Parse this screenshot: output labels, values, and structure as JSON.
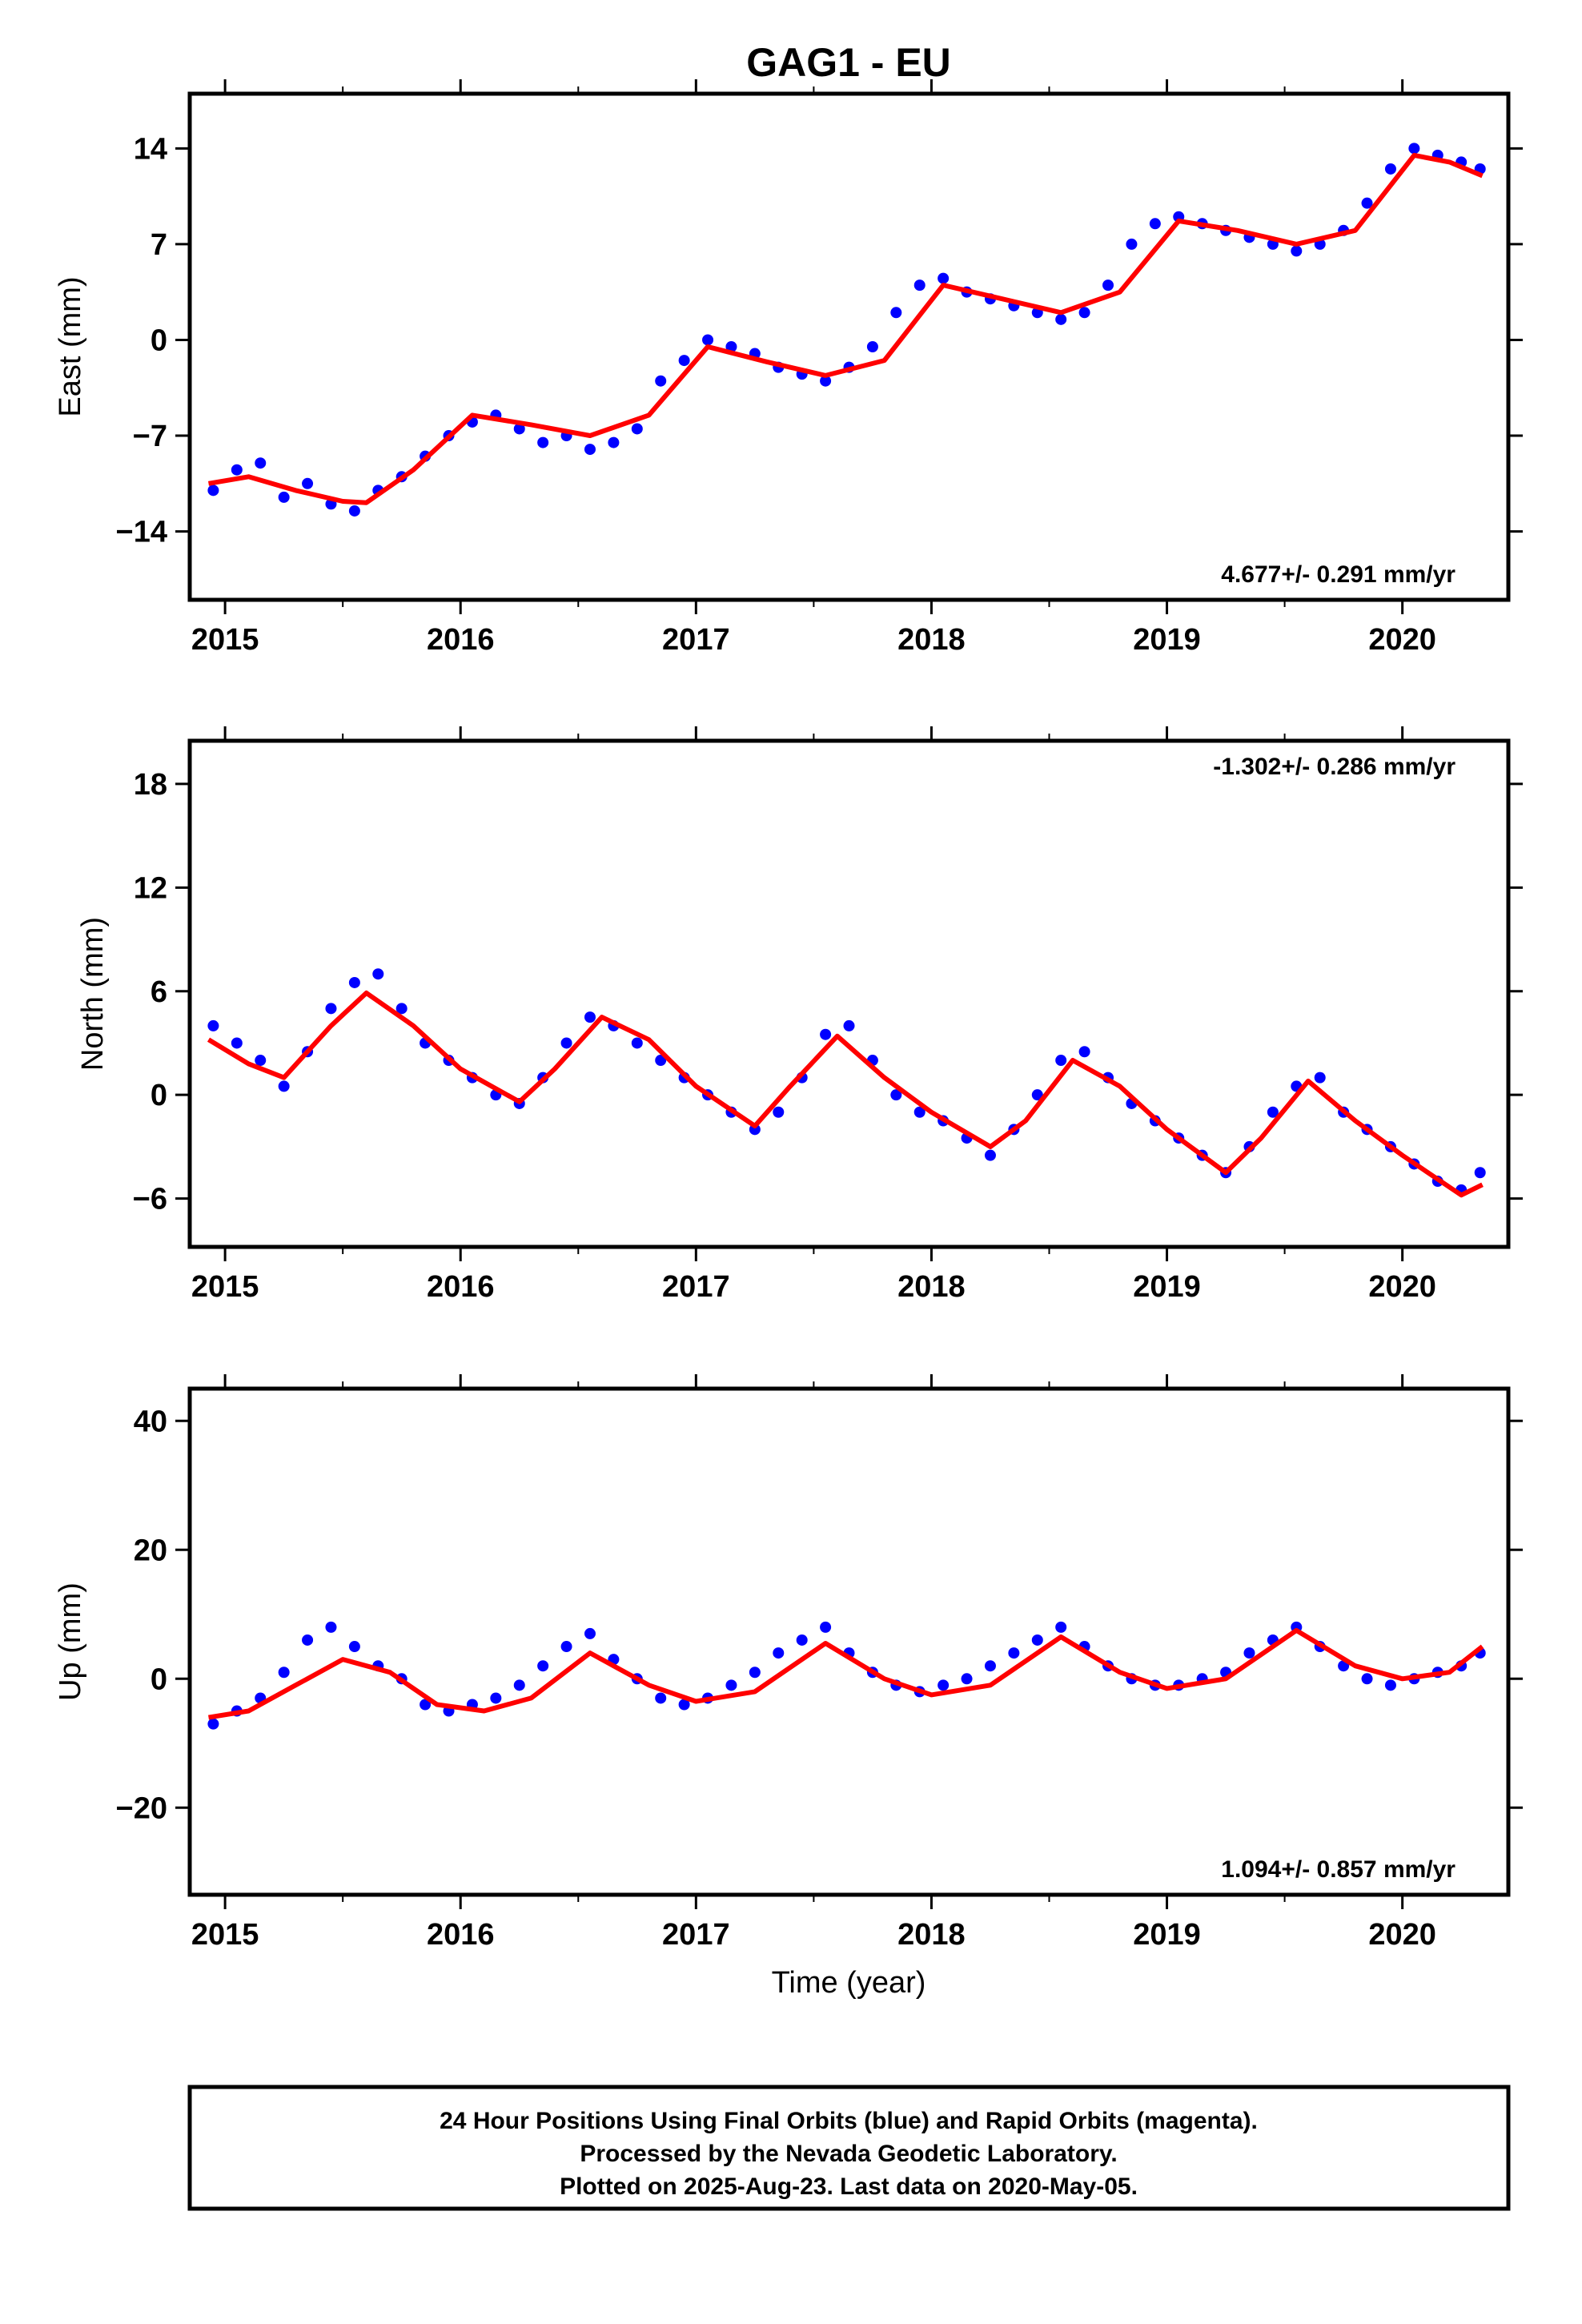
{
  "title": "GAG1 - EU",
  "xlabel": "Time (year)",
  "footer": [
    "24 Hour Positions Using Final Orbits (blue) and Rapid Orbits (magenta).",
    "Processed by the Nevada Geodetic Laboratory.",
    "Plotted on 2025-Aug-23. Last data on 2020-May-05."
  ],
  "colors": {
    "points": "#0000ff",
    "fit": "#ff0000",
    "frame": "#000000"
  },
  "chart_data": [
    {
      "type": "scatter",
      "ylabel": "East (mm)",
      "rate_text": "4.677+/- 0.291 mm/yr",
      "rate_position": "bottom-right",
      "xlim": [
        2014.85,
        2020.45
      ],
      "ylim": [
        -19,
        18
      ],
      "x_ticks": [
        2015,
        2016,
        2017,
        2018,
        2019,
        2020
      ],
      "x_tick_labels": [
        "2015",
        "2016",
        "2017",
        "2018",
        "2019",
        "2020"
      ],
      "y_ticks": [
        -14,
        -7,
        0,
        7,
        14
      ],
      "y_tick_labels": [
        "−14",
        "−7",
        "0",
        "7",
        "14"
      ],
      "fit_line": {
        "x": [
          2014.93,
          2015.1,
          2015.3,
          2015.5,
          2015.6,
          2015.8,
          2016.05,
          2016.3,
          2016.55,
          2016.8,
          2017.05,
          2017.3,
          2017.55,
          2017.8,
          2018.05,
          2018.3,
          2018.55,
          2018.8,
          2019.05,
          2019.3,
          2019.55,
          2019.8,
          2020.05,
          2020.2,
          2020.34
        ],
        "y": [
          -10.5,
          -10,
          -11,
          -11.8,
          -11.9,
          -9.5,
          -5.5,
          -6.2,
          -7.0,
          -5.5,
          -0.5,
          -1.6,
          -2.6,
          -1.5,
          4,
          3,
          2,
          3.5,
          8.7,
          8,
          7,
          8,
          13.5,
          13,
          12
        ]
      },
      "points": {
        "x": [
          2014.95,
          2015.05,
          2015.15,
          2015.25,
          2015.35,
          2015.45,
          2015.55,
          2015.65,
          2015.75,
          2015.85,
          2015.95,
          2016.05,
          2016.15,
          2016.25,
          2016.35,
          2016.45,
          2016.55,
          2016.65,
          2016.75,
          2016.85,
          2016.95,
          2017.05,
          2017.15,
          2017.25,
          2017.35,
          2017.45,
          2017.55,
          2017.65,
          2017.75,
          2017.85,
          2017.95,
          2018.05,
          2018.15,
          2018.25,
          2018.35,
          2018.45,
          2018.55,
          2018.65,
          2018.75,
          2018.85,
          2018.95,
          2019.05,
          2019.15,
          2019.25,
          2019.35,
          2019.45,
          2019.55,
          2019.65,
          2019.75,
          2019.85,
          2019.95,
          2020.05,
          2020.15,
          2020.25,
          2020.33
        ],
        "y": [
          -11,
          -9.5,
          -9,
          -11.5,
          -10.5,
          -12,
          -12.5,
          -11,
          -10,
          -8.5,
          -7,
          -6,
          -5.5,
          -6.5,
          -7.5,
          -7,
          -8,
          -7.5,
          -6.5,
          -3,
          -1.5,
          0,
          -0.5,
          -1,
          -2,
          -2.5,
          -3,
          -2,
          -0.5,
          2,
          4,
          4.5,
          3.5,
          3,
          2.5,
          2,
          1.5,
          2,
          4,
          7,
          8.5,
          9,
          8.5,
          8,
          7.5,
          7,
          6.5,
          7,
          8,
          10,
          12.5,
          14,
          13.5,
          13,
          12.5
        ]
      }
    },
    {
      "type": "scatter",
      "ylabel": "North (mm)",
      "rate_text": "-1.302+/- 0.286 mm/yr",
      "rate_position": "top-right",
      "xlim": [
        2014.85,
        2020.45
      ],
      "ylim": [
        -8.8,
        20.5
      ],
      "x_ticks": [
        2015,
        2016,
        2017,
        2018,
        2019,
        2020
      ],
      "x_tick_labels": [
        "2015",
        "2016",
        "2017",
        "2018",
        "2019",
        "2020"
      ],
      "y_ticks": [
        -6,
        0,
        6,
        12,
        18
      ],
      "y_tick_labels": [
        "−6",
        "0",
        "6",
        "12",
        "18"
      ],
      "fit_line": {
        "x": [
          2014.93,
          2015.1,
          2015.25,
          2015.45,
          2015.6,
          2015.8,
          2016.0,
          2016.25,
          2016.4,
          2016.6,
          2016.8,
          2017.0,
          2017.25,
          2017.4,
          2017.6,
          2017.8,
          2018.0,
          2018.25,
          2018.4,
          2018.6,
          2018.8,
          2019.0,
          2019.25,
          2019.4,
          2019.6,
          2019.8,
          2020.0,
          2020.25,
          2020.34
        ],
        "y": [
          3.2,
          1.8,
          1.0,
          4.0,
          5.9,
          4.0,
          1.5,
          -0.4,
          1.5,
          4.5,
          3.2,
          0.5,
          -1.8,
          0.5,
          3.4,
          1.0,
          -1.0,
          -3.0,
          -1.5,
          2.0,
          0.5,
          -2.0,
          -4.5,
          -2.5,
          0.8,
          -1.5,
          -3.5,
          -5.8,
          -5.2
        ]
      },
      "points": {
        "x": [
          2014.95,
          2015.05,
          2015.15,
          2015.25,
          2015.35,
          2015.45,
          2015.55,
          2015.65,
          2015.75,
          2015.85,
          2015.95,
          2016.05,
          2016.15,
          2016.25,
          2016.35,
          2016.45,
          2016.55,
          2016.65,
          2016.75,
          2016.85,
          2016.95,
          2017.05,
          2017.15,
          2017.25,
          2017.35,
          2017.45,
          2017.55,
          2017.65,
          2017.75,
          2017.85,
          2017.95,
          2018.05,
          2018.15,
          2018.25,
          2018.35,
          2018.45,
          2018.55,
          2018.65,
          2018.75,
          2018.85,
          2018.95,
          2019.05,
          2019.15,
          2019.25,
          2019.35,
          2019.45,
          2019.55,
          2019.65,
          2019.75,
          2019.85,
          2019.95,
          2020.05,
          2020.15,
          2020.25,
          2020.33
        ],
        "y": [
          4,
          3,
          2,
          0.5,
          2.5,
          5,
          6.5,
          7,
          5,
          3,
          2,
          1,
          0,
          -0.5,
          1,
          3,
          4.5,
          4,
          3,
          2,
          1,
          0,
          -1,
          -2,
          -1,
          1,
          3.5,
          4,
          2,
          0,
          -1,
          -1.5,
          -2.5,
          -3.5,
          -2,
          0,
          2,
          2.5,
          1,
          -0.5,
          -1.5,
          -2.5,
          -3.5,
          -4.5,
          -3,
          -1,
          0.5,
          1,
          -1,
          -2,
          -3,
          -4,
          -5,
          -5.5,
          -4.5
        ]
      }
    },
    {
      "type": "scatter",
      "ylabel": "Up (mm)",
      "rate_text": "1.094+/- 0.857 mm/yr",
      "rate_position": "bottom-right",
      "xlim": [
        2014.85,
        2020.45
      ],
      "ylim": [
        -33.5,
        45
      ],
      "x_ticks": [
        2015,
        2016,
        2017,
        2018,
        2019,
        2020
      ],
      "x_tick_labels": [
        "2015",
        "2016",
        "2017",
        "2018",
        "2019",
        "2020"
      ],
      "y_ticks": [
        -20,
        0,
        20,
        40
      ],
      "y_tick_labels": [
        "−20",
        "0",
        "20",
        "40"
      ],
      "fit_line": {
        "x": [
          2014.93,
          2015.1,
          2015.3,
          2015.5,
          2015.7,
          2015.9,
          2016.1,
          2016.3,
          2016.55,
          2016.8,
          2017.0,
          2017.25,
          2017.55,
          2017.8,
          2018.0,
          2018.25,
          2018.55,
          2018.8,
          2019.0,
          2019.25,
          2019.55,
          2019.8,
          2020.0,
          2020.2,
          2020.34
        ],
        "y": [
          -6,
          -5,
          -1,
          3,
          1,
          -4,
          -5,
          -3,
          4,
          -1,
          -3.5,
          -2,
          5.5,
          0,
          -2.5,
          -1,
          6.5,
          1,
          -1.5,
          0,
          7.5,
          2,
          0,
          1,
          5
        ]
      },
      "points": {
        "x": [
          2014.95,
          2015.05,
          2015.15,
          2015.25,
          2015.35,
          2015.45,
          2015.55,
          2015.65,
          2015.75,
          2015.85,
          2015.95,
          2016.05,
          2016.15,
          2016.25,
          2016.35,
          2016.45,
          2016.55,
          2016.65,
          2016.75,
          2016.85,
          2016.95,
          2017.05,
          2017.15,
          2017.25,
          2017.35,
          2017.45,
          2017.55,
          2017.65,
          2017.75,
          2017.85,
          2017.95,
          2018.05,
          2018.15,
          2018.25,
          2018.35,
          2018.45,
          2018.55,
          2018.65,
          2018.75,
          2018.85,
          2018.95,
          2019.05,
          2019.15,
          2019.25,
          2019.35,
          2019.45,
          2019.55,
          2019.65,
          2019.75,
          2019.85,
          2019.95,
          2020.05,
          2020.15,
          2020.25,
          2020.33
        ],
        "y": [
          -7,
          -5,
          -3,
          1,
          6,
          8,
          5,
          2,
          0,
          -4,
          -5,
          -4,
          -3,
          -1,
          2,
          5,
          7,
          3,
          0,
          -3,
          -4,
          -3,
          -1,
          1,
          4,
          6,
          8,
          4,
          1,
          -1,
          -2,
          -1,
          0,
          2,
          4,
          6,
          8,
          5,
          2,
          0,
          -1,
          -1,
          0,
          1,
          4,
          6,
          8,
          5,
          2,
          0,
          -1,
          0,
          1,
          2,
          4
        ]
      }
    }
  ]
}
